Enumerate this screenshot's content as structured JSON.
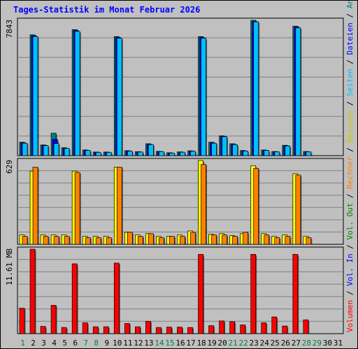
{
  "title": "Tages-Statistik im Monat Februar 2026",
  "chart_data": {
    "type": "bar",
    "days": [
      "1",
      "2",
      "3",
      "4",
      "5",
      "6",
      "7",
      "8",
      "9",
      "10",
      "11",
      "12",
      "13",
      "14",
      "15",
      "16",
      "17",
      "18",
      "19",
      "20",
      "21",
      "22",
      "23",
      "24",
      "25",
      "26",
      "27",
      "28",
      "29",
      "30",
      "31"
    ],
    "weekend_days": [
      "1",
      "7",
      "8",
      "14",
      "15",
      "21",
      "22",
      "28",
      "29"
    ],
    "panels": [
      {
        "name": "hits",
        "axis_label": "7843",
        "ylim": [
          0,
          7843
        ],
        "series": [
          {
            "name": "Anfragen",
            "color": "#008080",
            "values": [
              780,
              7000,
              620,
              1300,
              460,
              7300,
              330,
              210,
              210,
              6900,
              290,
              230,
              690,
              250,
              170,
              220,
              280,
              6900,
              780,
              1150,
              690,
              300,
              7843,
              330,
              240,
              600,
              7500,
              240,
              null,
              null,
              null
            ]
          },
          {
            "name": "Dateien",
            "color": "#0000ff",
            "values": [
              740,
              6950,
              600,
              950,
              430,
              7250,
              310,
              200,
              200,
              6850,
              270,
              220,
              660,
              240,
              160,
              210,
              270,
              6850,
              740,
              1120,
              660,
              280,
              7780,
              310,
              230,
              580,
              7450,
              230,
              null,
              null,
              null
            ]
          },
          {
            "name": "Seiten",
            "color": "#00c0ff",
            "values": [
              720,
              6900,
              580,
              700,
              420,
              7200,
              300,
              190,
              190,
              6800,
              260,
              210,
              640,
              230,
              150,
              200,
              260,
              6800,
              720,
              1100,
              640,
              270,
              7750,
              300,
              220,
              560,
              7400,
              220,
              null,
              null,
              null
            ]
          }
        ]
      },
      {
        "name": "visits",
        "axis_label": "629",
        "ylim": [
          0,
          629
        ],
        "series": [
          {
            "name": "Besuche",
            "color": "#ffff00",
            "values": [
              70,
              550,
              70,
              70,
              70,
              550,
              60,
              60,
              60,
              580,
              90,
              70,
              80,
              60,
              60,
              70,
              100,
              629,
              75,
              80,
              65,
              80,
              590,
              80,
              60,
              70,
              530,
              60,
              null,
              null,
              null
            ]
          },
          {
            "name": "Rechner",
            "color": "#ff8000",
            "values": [
              60,
              580,
              60,
              60,
              60,
              540,
              50,
              50,
              50,
              580,
              90,
              60,
              80,
              50,
              60,
              60,
              90,
              600,
              70,
              70,
              60,
              90,
              570,
              70,
              50,
              60,
              520,
              50,
              null,
              null,
              null
            ]
          }
        ]
      },
      {
        "name": "volume",
        "axis_label": "11.61 MB",
        "ylim": [
          0,
          11.61
        ],
        "series": [
          {
            "name": "Volumen",
            "color": "#ff0000",
            "values": [
              3.5,
              11.61,
              1.0,
              3.9,
              0.85,
              9.6,
              1.5,
              0.95,
              0.95,
              9.7,
              1.4,
              0.95,
              1.7,
              0.85,
              0.9,
              0.9,
              0.85,
              10.9,
              1.1,
              1.75,
              1.65,
              1.2,
              10.9,
              1.5,
              2.3,
              1.05,
              10.9,
              1.9,
              null,
              null,
              null
            ]
          }
        ]
      }
    ],
    "legend_labels": {
      "volumen": "Volumen",
      "vol_in": "Vol. In",
      "vol_out": "Vol. Out",
      "rechner": "Rechner",
      "besuche": "Besuche",
      "seiten": "Seiten",
      "dateien": "Dateien",
      "anfragen": "Anfragen",
      "separator": "/"
    },
    "legend_colors": {
      "volumen": "#ff0000",
      "vol_in": "#0000ff",
      "vol_out": "#008000",
      "rechner": "#ff8000",
      "besuche": "#c8c800",
      "seiten": "#00c0ff",
      "dateien": "#0000ff",
      "anfragen": "#008080",
      "separator": "#000000"
    }
  }
}
